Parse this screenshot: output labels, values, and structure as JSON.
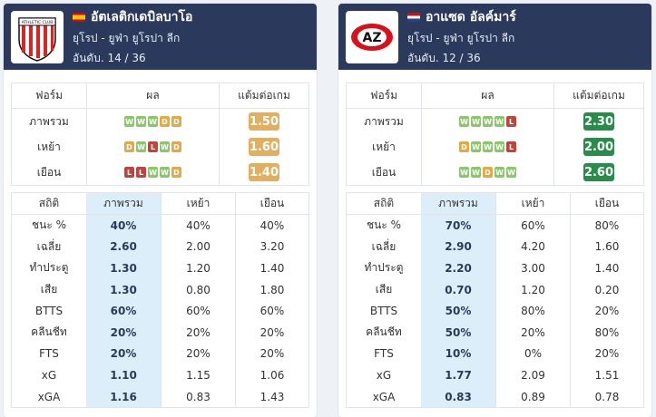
{
  "cards": [
    {
      "team": "อัตเลติกเดบิลบาโอ",
      "flag": "es",
      "league": "ยุโรป - ยูฟ่า ยูโรปา ลีก",
      "rank": "อันดับ. 14 / 36",
      "form_headers": [
        "ฟอร์ม",
        "ผล",
        "แต้มต่อเกม"
      ],
      "form": [
        {
          "label": "ภาพรวม",
          "results": [
            "W",
            "W",
            "W",
            "D",
            "D"
          ],
          "ppg": "1.50",
          "color": "amber"
        },
        {
          "label": "เหย้า",
          "results": [
            "D",
            "W",
            "L",
            "W",
            "D"
          ],
          "ppg": "1.60",
          "color": "amber"
        },
        {
          "label": "เยือน",
          "results": [
            "L",
            "L",
            "W",
            "W",
            "D"
          ],
          "ppg": "1.40",
          "color": "amber"
        }
      ],
      "stat_headers": [
        "สถิติ",
        "ภาพรวม",
        "เหย้า",
        "เยือน"
      ],
      "stats": [
        [
          "ชนะ %",
          "40%",
          "40%",
          "40%"
        ],
        [
          "เฉลี่ย",
          "2.60",
          "2.00",
          "3.20"
        ],
        [
          "ทำประตู",
          "1.30",
          "1.20",
          "1.40"
        ],
        [
          "เสีย",
          "1.30",
          "0.80",
          "1.80"
        ],
        [
          "BTTS",
          "60%",
          "60%",
          "60%"
        ],
        [
          "คลีนชีท",
          "20%",
          "20%",
          "20%"
        ],
        [
          "FTS",
          "20%",
          "20%",
          "20%"
        ],
        [
          "xG",
          "1.10",
          "1.15",
          "1.06"
        ],
        [
          "xGA",
          "1.16",
          "0.83",
          "1.43"
        ]
      ]
    },
    {
      "team": "อาแซด อัลค์มาร์",
      "flag": "nl",
      "league": "ยุโรป - ยูฟ่า ยูโรปา ลีก",
      "rank": "อันดับ. 12 / 36",
      "form_headers": [
        "ฟอร์ม",
        "ผล",
        "แต้มต่อเกม"
      ],
      "form": [
        {
          "label": "ภาพรวม",
          "results": [
            "W",
            "W",
            "W",
            "W",
            "L"
          ],
          "ppg": "2.30",
          "color": "green"
        },
        {
          "label": "เหย้า",
          "results": [
            "D",
            "W",
            "W",
            "W",
            "L"
          ],
          "ppg": "2.00",
          "color": "green"
        },
        {
          "label": "เยือน",
          "results": [
            "W",
            "W",
            "D",
            "W",
            "W"
          ],
          "ppg": "2.60",
          "color": "green"
        }
      ],
      "stat_headers": [
        "สถิติ",
        "ภาพรวม",
        "เหย้า",
        "เยือน"
      ],
      "stats": [
        [
          "ชนะ %",
          "70%",
          "60%",
          "80%"
        ],
        [
          "เฉลี่ย",
          "2.90",
          "4.20",
          "1.60"
        ],
        [
          "ทำประตู",
          "2.20",
          "3.00",
          "1.40"
        ],
        [
          "เสีย",
          "0.70",
          "1.20",
          "0.20"
        ],
        [
          "BTTS",
          "50%",
          "80%",
          "20%"
        ],
        [
          "คลีนชีท",
          "50%",
          "20%",
          "80%"
        ],
        [
          "FTS",
          "10%",
          "0%",
          "20%"
        ],
        [
          "xG",
          "1.77",
          "2.09",
          "1.51"
        ],
        [
          "xGA",
          "0.83",
          "0.89",
          "0.78"
        ]
      ]
    }
  ],
  "logos": {
    "home_text": "ATHLETIC CLUB",
    "away_text": "AZ"
  }
}
